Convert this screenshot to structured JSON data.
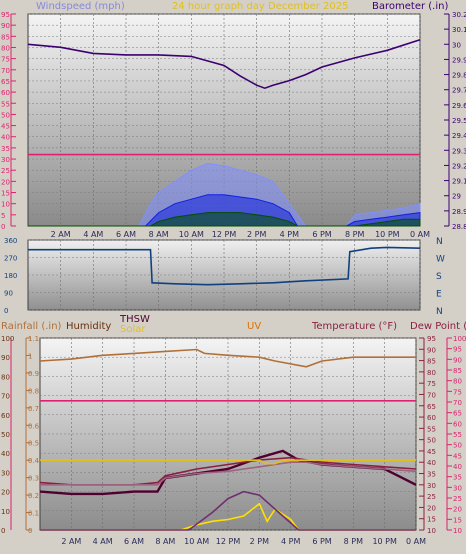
{
  "chart_data": [
    {
      "type": "line",
      "title": "24 hour graph day",
      "date_label": "December 2025",
      "legend": {
        "left": "Windspeed (mph)",
        "right": "Barometer (.in)"
      },
      "x_ticks": [
        "2 AM",
        "4 AM",
        "6 AM",
        "8 AM",
        "10 AM",
        "12 PM",
        "2 PM",
        "4 PM",
        "6 PM",
        "8 PM",
        "10 PM",
        "0 AM"
      ],
      "y_left": {
        "label": "Windspeed (mph)",
        "ticks": [
          "0",
          "5",
          "10",
          "15",
          "20",
          "25",
          "30",
          "35",
          "40",
          "45",
          "50",
          "55",
          "60",
          "65",
          "70",
          "75",
          "80",
          "85",
          "90",
          "95"
        ],
        "range": [
          0,
          95
        ]
      },
      "y_right": {
        "label": "Barometer (.in)",
        "ticks": [
          "28.8",
          "28.9",
          "29",
          "29.1",
          "29.2",
          "29.3",
          "29.4",
          "29.5",
          "29.6",
          "29.7",
          "29.8",
          "29.9",
          "30",
          "30.1",
          "30.2"
        ],
        "range": [
          28.8,
          30.2
        ]
      },
      "series": [
        {
          "name": "Barometer",
          "color": "#3c0070",
          "axis": "right",
          "x": [
            0,
            2,
            4,
            6,
            8,
            10,
            12,
            13,
            14,
            14.5,
            15,
            16,
            17,
            18,
            20,
            22,
            24
          ],
          "y": [
            30.0,
            29.98,
            29.94,
            29.93,
            29.93,
            29.92,
            29.86,
            29.79,
            29.73,
            29.71,
            29.73,
            29.76,
            29.8,
            29.85,
            29.91,
            29.96,
            30.03
          ]
        },
        {
          "name": "Windspeed (mph) gust",
          "color": "#8090ff",
          "axis": "left",
          "x": [
            0,
            6.8,
            7.5,
            8,
            9,
            10,
            11,
            12,
            13,
            14,
            15,
            16,
            17,
            19.5,
            20,
            21,
            22,
            23,
            24
          ],
          "y": [
            0,
            0,
            10,
            15,
            20,
            25,
            28,
            27,
            25,
            23,
            20,
            10,
            0,
            0,
            5,
            6,
            7,
            8,
            10
          ]
        },
        {
          "name": "Windspeed (mph) high",
          "color": "#1020e0",
          "axis": "left",
          "x": [
            0,
            7.2,
            8,
            9,
            10,
            11,
            12,
            13,
            14,
            15,
            16,
            16.5,
            19.5,
            20,
            21,
            22,
            23,
            24
          ],
          "y": [
            0,
            0,
            6,
            10,
            12,
            14,
            14,
            13,
            12,
            10,
            6,
            0,
            0,
            2,
            3,
            4,
            5,
            6
          ]
        },
        {
          "name": "Windspeed (mph) average",
          "color": "#005000",
          "axis": "left",
          "x": [
            0,
            7.5,
            8,
            9,
            10,
            11,
            12,
            13,
            14,
            15,
            16,
            16.5,
            19.5,
            20,
            21,
            22,
            23,
            24
          ],
          "y": [
            0,
            0,
            2,
            4,
            5,
            6,
            6,
            6,
            5,
            4,
            2,
            0,
            0,
            0,
            1,
            2,
            3,
            3
          ]
        },
        {
          "name": "Windspeed (mph) reference",
          "color": "#e02070",
          "axis": "left",
          "x": [
            0,
            24
          ],
          "y": [
            32,
            32
          ]
        }
      ]
    },
    {
      "type": "line",
      "x_ticks": [
        "2 AM",
        "4 AM",
        "6 AM",
        "8 AM",
        "10 AM",
        "12 PM",
        "2 PM",
        "4 PM",
        "6 PM",
        "8 PM",
        "10 PM",
        "0 AM"
      ],
      "y_left": {
        "ticks": [
          "0",
          "90",
          "180",
          "270",
          "360"
        ],
        "range": [
          0,
          360
        ]
      },
      "y_right": {
        "ticks": [
          "N",
          "W",
          "S",
          "E",
          "N"
        ]
      },
      "series": [
        {
          "name": "Wind direction",
          "color": "#104080",
          "x": [
            0,
            7.5,
            7.6,
            9,
            11,
            13,
            15,
            17,
            19.6,
            19.7,
            21,
            22,
            24
          ],
          "y": [
            310,
            310,
            140,
            135,
            130,
            135,
            140,
            150,
            160,
            300,
            318,
            322,
            318
          ]
        }
      ]
    },
    {
      "type": "line",
      "legend": {
        "rainfall": "Rainfall (.in)",
        "humidity": "Humidity",
        "thsw": "THSW",
        "solar": "Solar",
        "uv": "UV",
        "temperature": "Temperature (°F)",
        "dewpoint": "Dew Point (°F)"
      },
      "x_ticks": [
        "2 AM",
        "4 AM",
        "6 AM",
        "8 AM",
        "10 AM",
        "12 PM",
        "2 PM",
        "4 PM",
        "6 PM",
        "8 PM",
        "10 PM",
        "0 AM"
      ],
      "y_humidity": {
        "ticks": [
          "0",
          "10",
          "20",
          "30",
          "40",
          "50",
          "60",
          "70",
          "80",
          "90",
          "100"
        ],
        "range": [
          0,
          100
        ]
      },
      "y_rainfall": {
        "ticks": [
          "0",
          "0.1",
          "0.2",
          "0.3",
          "0.4",
          "0.5",
          "0.6",
          "0.7",
          "0.8",
          "0.9",
          "1",
          "1.1"
        ],
        "range": [
          0,
          1.1
        ]
      },
      "y_temperature": {
        "ticks": [
          "10",
          "15",
          "20",
          "25",
          "30",
          "35",
          "40",
          "45",
          "50",
          "55",
          "60",
          "65",
          "70",
          "75",
          "80",
          "85",
          "90",
          "95"
        ],
        "range": [
          10,
          95
        ]
      },
      "y_dewpoint": {
        "ticks": [
          "10",
          "15",
          "20",
          "25",
          "30",
          "35",
          "40",
          "45",
          "50",
          "55",
          "60",
          "65",
          "70",
          "75",
          "80",
          "85",
          "90",
          "95",
          "100"
        ],
        "range": [
          10,
          100
        ]
      },
      "series": [
        {
          "name": "Humidity",
          "color": "#b0703a",
          "axis": "humidity",
          "x": [
            0,
            2,
            4,
            6,
            8,
            10,
            10.5,
            12,
            14,
            15,
            17,
            18,
            20,
            22,
            24
          ],
          "y": [
            88,
            89,
            91,
            92,
            93,
            94,
            92,
            91,
            90,
            88,
            85,
            88,
            90,
            90,
            90
          ]
        },
        {
          "name": "Rainfall (.in)",
          "color": "#e02070",
          "axis": "rainfall",
          "x": [
            0,
            24
          ],
          "y": [
            0.74,
            0.74
          ]
        },
        {
          "name": "THSW",
          "color": "#500030",
          "axis": "temperature",
          "x": [
            0,
            2,
            4,
            6,
            7.5,
            8,
            10,
            12,
            14,
            15.5,
            16.5,
            18,
            20,
            22,
            24
          ],
          "y": [
            27,
            26,
            26,
            27,
            27,
            33,
            35,
            37,
            42,
            45,
            41,
            39,
            38,
            37,
            30
          ]
        },
        {
          "name": "Temperature (°F)",
          "color": "#8a2040",
          "axis": "temperature",
          "x": [
            0,
            2,
            4,
            6,
            7.5,
            8,
            10,
            12,
            14,
            16,
            18,
            20,
            22,
            24
          ],
          "y": [
            31,
            30,
            30,
            30,
            31,
            34,
            37,
            39,
            41,
            42,
            40,
            39,
            38,
            37
          ]
        },
        {
          "name": "Dew Point (°F)",
          "color": "#a06080",
          "axis": "temperature",
          "x": [
            0,
            7.5,
            8,
            10,
            12,
            13,
            14,
            15,
            16,
            17,
            18,
            20,
            22,
            24
          ],
          "y": [
            30,
            30,
            33,
            35,
            36,
            37,
            38,
            39,
            40,
            40,
            39,
            38,
            37,
            36
          ]
        },
        {
          "name": "UV",
          "color": "#e0c020",
          "axis": "rainfall",
          "x": [
            0,
            12.5,
            13,
            14,
            14.5,
            15,
            15.5,
            16,
            24
          ],
          "y": [
            0.4,
            0.4,
            0.4,
            0.4,
            0.38,
            0.38,
            0.4,
            0.4,
            0.4
          ]
        },
        {
          "name": "Solar",
          "color": "#ffe000",
          "axis": "rainfall",
          "x": [
            0,
            9,
            10,
            11,
            12,
            13,
            14,
            14.5,
            15,
            16,
            16.5,
            24
          ],
          "y": [
            0,
            0,
            0.03,
            0.05,
            0.06,
            0.08,
            0.15,
            0.05,
            0.12,
            0.06,
            0,
            0
          ]
        },
        {
          "name": "Solar curve",
          "color": "#703070",
          "axis": "rainfall",
          "x": [
            0,
            9.5,
            11,
            12,
            13,
            14,
            15,
            16,
            16.5,
            24
          ],
          "y": [
            0,
            0,
            0.1,
            0.18,
            0.22,
            0.2,
            0.12,
            0.04,
            0,
            0
          ]
        }
      ]
    }
  ]
}
